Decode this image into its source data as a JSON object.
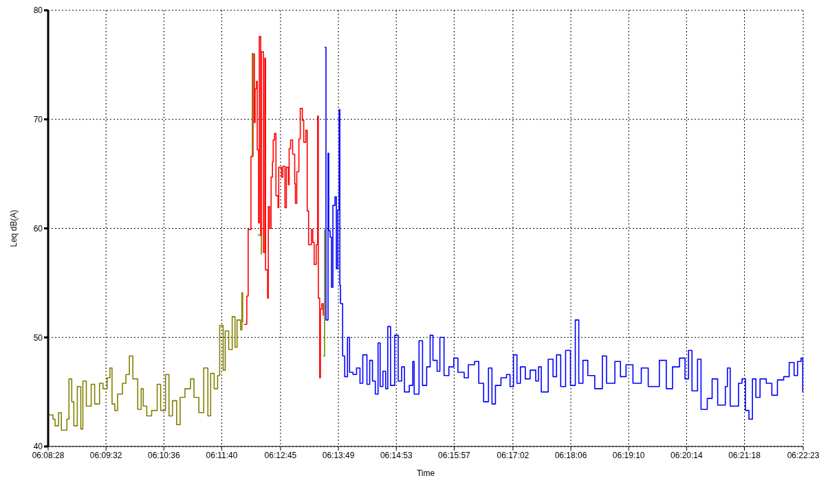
{
  "chart_data": {
    "type": "step",
    "xlabel": "Time",
    "ylabel": "Leq dB(A)",
    "grid": true,
    "marker": "none",
    "line_style": "solid",
    "xlim": [
      6.14111,
      6.37306
    ],
    "ylim": [
      40,
      80
    ],
    "yticks": [
      40,
      50,
      60,
      70,
      80
    ],
    "xticks": [
      {
        "value": 6.14111,
        "label": "06:08:28"
      },
      {
        "value": 6.15889,
        "label": "06:09:32"
      },
      {
        "value": 6.17667,
        "label": "06:10:36"
      },
      {
        "value": 6.19444,
        "label": "06:11:40"
      },
      {
        "value": 6.2125,
        "label": "06:12:45"
      },
      {
        "value": 6.23028,
        "label": "06:13:49"
      },
      {
        "value": 6.24806,
        "label": "06:14:53"
      },
      {
        "value": 6.26583,
        "label": "06:15:57"
      },
      {
        "value": 6.28389,
        "label": "06:17:02"
      },
      {
        "value": 6.30167,
        "label": "06:18:06"
      },
      {
        "value": 6.31944,
        "label": "06:19:10"
      },
      {
        "value": 6.33722,
        "label": "06:20:14"
      },
      {
        "value": 6.355,
        "label": "06:21:18"
      },
      {
        "value": 6.37306,
        "label": "06:22:23"
      }
    ],
    "series": [
      {
        "color": "#ff0000",
        "x": [
          6.20127,
          6.20213,
          6.20255,
          6.20341,
          6.20405,
          6.20447,
          6.20469,
          6.20512,
          6.20533,
          6.20576,
          6.20597,
          6.2064,
          6.20661,
          6.20725,
          6.20768,
          6.20789,
          6.20853,
          6.20874,
          6.20917,
          6.2096,
          6.21002,
          6.21024,
          6.21066,
          6.21109,
          6.21173,
          6.21194,
          6.2128,
          6.21322,
          6.21386,
          6.21429,
          6.21493,
          6.21514,
          6.21557,
          6.21621,
          6.21685,
          6.21706,
          6.21749,
          6.21813,
          6.21856,
          6.2192,
          6.21962,
          6.22026,
          6.22069,
          6.22112,
          6.22197,
          6.2224,
          6.22282,
          6.22346,
          6.22389,
          6.2241,
          6.22453,
          6.22474,
          6.22517,
          6.2256
        ],
        "values": [
          51.2,
          53.8,
          59.9,
          66.6,
          76.0,
          69.7,
          72.8,
          73.5,
          67.2,
          60.5,
          77.6,
          59.3,
          76.2,
          57.8,
          75.6,
          56.2,
          53.6,
          62.0,
          60.0,
          64.7,
          66.1,
          68.1,
          68.7,
          63.0,
          61.9,
          65.6,
          64.7,
          65.7,
          61.9,
          65.6,
          64.0,
          67.3,
          68.1,
          66.8,
          64.1,
          62.3,
          65.2,
          68.2,
          71.0,
          69.9,
          67.9,
          69.0,
          61.6,
          58.5,
          59.9,
          58.7,
          56.7,
          58.5,
          70.3,
          53.6,
          46.3,
          52.6,
          53.1,
          52.0
        ]
      },
      {
        "color": "#808000",
        "x": [
          6.14111,
          6.1426,
          6.14324,
          6.14431,
          6.14516,
          6.14687,
          6.14751,
          6.14836,
          6.149,
          6.15007,
          6.15114,
          6.15178,
          6.15284,
          6.15434,
          6.1554,
          6.1569,
          6.15796,
          6.15924,
          6.1601,
          6.16074,
          6.16159,
          6.16245,
          6.16394,
          6.16501,
          6.16607,
          6.16714,
          6.16863,
          6.1697,
          6.17034,
          6.17141,
          6.1729,
          6.17461,
          6.17567,
          6.17717,
          6.17823,
          6.1793,
          6.18058,
          6.18165,
          6.18314,
          6.18485,
          6.18591,
          6.18741,
          6.1889,
          6.19018,
          6.19103,
          6.1921,
          6.19317,
          6.19381,
          6.19487,
          6.19551,
          6.19658,
          6.19765,
          6.1985,
          6.19914,
          6.20021,
          6.20063,
          6.20085,
          6.20106,
          6.20362,
          6.20383,
          6.20405,
          6.20554,
          6.20661,
          6.20725,
          6.2256,
          6.22602
        ],
        "values": [
          42.9,
          42.5,
          41.9,
          43.1,
          41.5,
          42.5,
          46.2,
          44.1,
          41.9,
          45.5,
          41.6,
          46.0,
          43.7,
          45.7,
          43.9,
          45.8,
          45.3,
          46.3,
          47.2,
          43.9,
          43.3,
          44.8,
          45.8,
          46.6,
          48.3,
          46.2,
          43.4,
          45.3,
          43.7,
          42.8,
          43.3,
          45.7,
          43.3,
          46.6,
          42.8,
          44.2,
          42.0,
          44.5,
          45.3,
          46.2,
          44.5,
          43.1,
          47.2,
          42.8,
          46.7,
          45.3,
          46.5,
          51.1,
          47.0,
          50.6,
          48.9,
          51.9,
          49.1,
          51.6,
          50.7,
          54.1,
          51.4,
          null,
          66.7,
          76.1,
          null,
          59.4,
          57.6,
          null,
          48.3,
          59.9
        ]
      },
      {
        "color": "#0000ff",
        "x": [
          6.22602,
          6.22645,
          6.22709,
          6.2273,
          6.22773,
          6.22816,
          6.22858,
          6.22922,
          6.22965,
          6.23008,
          6.2305,
          6.23072,
          6.23093,
          6.23157,
          6.23221,
          6.23306,
          6.2337,
          6.23477,
          6.23584,
          6.2369,
          6.23776,
          6.23904,
          6.23989,
          6.24074,
          6.2416,
          6.24245,
          6.24309,
          6.24394,
          6.2448,
          6.24544,
          6.24629,
          6.24757,
          6.24864,
          6.24971,
          6.25056,
          6.25205,
          6.25312,
          6.25355,
          6.25504,
          6.25611,
          6.25739,
          6.25845,
          6.25931,
          6.26059,
          6.26144,
          6.26272,
          6.26421,
          6.26571,
          6.26699,
          6.26891,
          6.27019,
          6.27211,
          6.27339,
          6.27488,
          6.27637,
          6.27744,
          6.27851,
          6.28021,
          6.28192,
          6.28299,
          6.28405,
          6.28512,
          6.28619,
          6.28768,
          6.28917,
          6.29088,
          6.29174,
          6.29259,
          6.29472,
          6.29621,
          6.29728,
          6.29856,
          6.30006,
          6.30155,
          6.30304,
          6.30411,
          6.30539,
          6.30688,
          6.30902,
          6.31136,
          6.31264,
          6.3152,
          6.31691,
          6.31862,
          6.32075,
          6.32331,
          6.32544,
          6.32886,
          6.33099,
          6.33291,
          6.33505,
          6.33675,
          6.33782,
          6.33889,
          6.34059,
          6.34166,
          6.34358,
          6.34507,
          6.34678,
          6.34913,
          6.34977,
          6.35062,
          6.35318,
          6.35425,
          6.35531,
          6.35638,
          6.35745,
          6.35851,
          6.35979,
          6.36171,
          6.36342,
          6.36513,
          6.36705,
          6.36875,
          6.37025,
          6.37131,
          6.37238,
          6.3729
        ],
        "values": [
          76.6,
          51.6,
          66.9,
          59.8,
          59.2,
          54.6,
          62.1,
          62.9,
          56.3,
          61.7,
          70.9,
          54.8,
          53.1,
          48.3,
          46.4,
          50.0,
          46.8,
          46.6,
          47.2,
          45.8,
          48.4,
          45.7,
          47.9,
          46.0,
          44.8,
          49.5,
          45.5,
          46.9,
          45.3,
          51.0,
          45.6,
          50.2,
          46.0,
          47.3,
          45.0,
          45.6,
          47.8,
          44.8,
          49.7,
          45.6,
          47.3,
          50.2,
          47.9,
          46.9,
          50.0,
          46.5,
          47.3,
          48.1,
          46.8,
          46.3,
          47.5,
          47.8,
          45.8,
          44.1,
          47.2,
          43.9,
          45.6,
          46.3,
          46.6,
          45.5,
          48.4,
          45.8,
          47.3,
          46.2,
          47.0,
          46.0,
          47.3,
          45.0,
          48.0,
          46.4,
          48.4,
          45.5,
          48.8,
          45.6,
          51.6,
          45.8,
          47.9,
          46.5,
          45.3,
          48.3,
          45.8,
          47.8,
          46.4,
          47.5,
          45.8,
          47.2,
          45.5,
          47.9,
          45.3,
          47.3,
          48.1,
          46.2,
          48.8,
          45.1,
          48.0,
          43.4,
          44.4,
          46.2,
          43.8,
          45.5,
          47.2,
          43.7,
          45.8,
          46.2,
          43.3,
          42.5,
          46.2,
          44.5,
          46.2,
          45.8,
          44.7,
          46.1,
          46.4,
          47.7,
          46.5,
          47.8,
          48.1,
          45.0
        ]
      }
    ]
  }
}
